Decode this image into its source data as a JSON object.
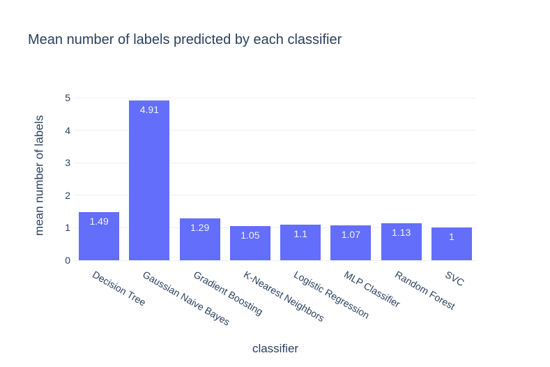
{
  "chart_data": {
    "type": "bar",
    "title": "Mean number of labels predicted by each classifier",
    "xlabel": "classifier",
    "ylabel": "mean number of labels",
    "categories": [
      "Decision Tree",
      "Gaussian Naive Bayes",
      "Gradient Boosting",
      "K-Nearest Neighbors",
      "Logistic Regression",
      "MLP Classifier",
      "Random Forest",
      "SVC"
    ],
    "values": [
      1.49,
      4.91,
      1.29,
      1.05,
      1.1,
      1.07,
      1.13,
      1
    ],
    "bar_labels": [
      "1.49",
      "4.91",
      "1.29",
      "1.05",
      "1.1",
      "1.07",
      "1.13",
      "1"
    ],
    "ylim": [
      0,
      5
    ],
    "yticks": [
      0,
      1,
      2,
      3,
      4,
      5
    ],
    "grid": true,
    "legend": "none",
    "x_tick_angle_deg": 30,
    "colors": {
      "bar": "#636EFA",
      "grid": "#EBF0F8",
      "text": "#2A3F5F",
      "bar_label": "#F2F3F7",
      "background": "#FFFFFF"
    }
  }
}
